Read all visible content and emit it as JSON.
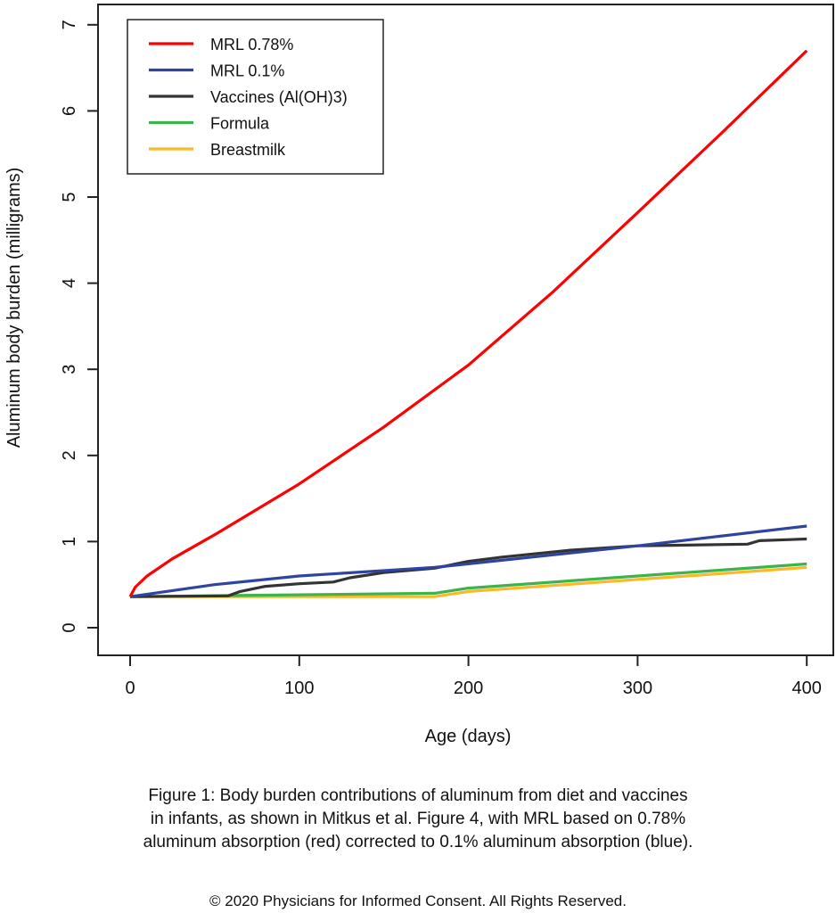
{
  "chart_data": {
    "type": "line",
    "title": "",
    "xlabel": "Age (days)",
    "ylabel": "Aluminum body burden (milligrams)",
    "xlim": [
      -18,
      418
    ],
    "ylim": [
      -0.3,
      7.3
    ],
    "xticks": [
      "0",
      "100",
      "200",
      "300",
      "400"
    ],
    "yticks": [
      "0",
      "1",
      "2",
      "3",
      "4",
      "5",
      "6",
      "7"
    ],
    "grid": false,
    "legend_position": "top-left",
    "series": [
      {
        "name": "MRL 0.78%",
        "color": "#ff0000",
        "x": [
          0,
          3,
          10,
          25,
          50,
          100,
          150,
          200,
          250,
          300,
          350,
          400
        ],
        "y": [
          0.36,
          0.47,
          0.6,
          0.8,
          1.08,
          1.67,
          2.33,
          3.05,
          3.9,
          4.82,
          5.75,
          6.7
        ]
      },
      {
        "name": "MRL 0.1%",
        "color": "#2e45a0",
        "x": [
          0,
          50,
          100,
          180,
          300,
          400
        ],
        "y": [
          0.36,
          0.5,
          0.6,
          0.7,
          0.95,
          1.18
        ]
      },
      {
        "name": "Vaccines (Al(OH)3)",
        "color": "#333333",
        "x": [
          0,
          58,
          65,
          80,
          100,
          120,
          130,
          150,
          180,
          200,
          220,
          260,
          300,
          365,
          372,
          400
        ],
        "y": [
          0.36,
          0.37,
          0.42,
          0.48,
          0.51,
          0.53,
          0.58,
          0.64,
          0.69,
          0.77,
          0.82,
          0.9,
          0.95,
          0.97,
          1.01,
          1.03
        ]
      },
      {
        "name": "Formula",
        "color": "#3cb44b",
        "x": [
          0,
          180,
          200,
          400
        ],
        "y": [
          0.36,
          0.4,
          0.46,
          0.74
        ]
      },
      {
        "name": "Breastmilk",
        "color": "#fbb829",
        "x": [
          0,
          180,
          200,
          400
        ],
        "y": [
          0.36,
          0.36,
          0.42,
          0.7
        ]
      }
    ]
  },
  "caption": {
    "lines": [
      "Figure 1: Body burden contributions of aluminum from diet and vaccines",
      "in infants, as shown in Mitkus et al. Figure 4, with MRL based on 0.78%",
      "aluminum absorption (red) corrected to 0.1% aluminum absorption (blue)."
    ],
    "copyright": "© 2020 Physicians for Informed Consent. All Rights Reserved."
  }
}
